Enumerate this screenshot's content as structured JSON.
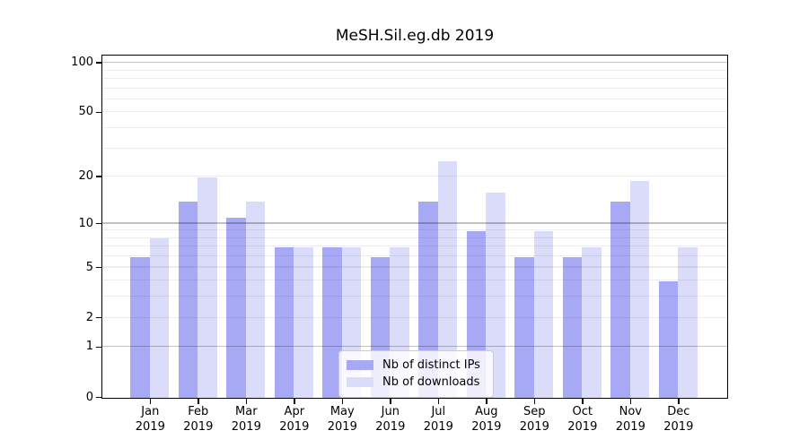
{
  "title": "MeSH.Sil.eg.db 2019",
  "chart_data": {
    "type": "bar",
    "title": "MeSH.Sil.eg.db 2019",
    "categories": [
      "Jan",
      "Feb",
      "Mar",
      "Apr",
      "May",
      "Jun",
      "Jul",
      "Aug",
      "Sep",
      "Oct",
      "Nov",
      "Dec"
    ],
    "x_tick_second_line": "2019",
    "series": [
      {
        "name": "Nb of distinct IPs",
        "color": "#a8a9f4",
        "values": [
          6,
          14,
          11,
          7,
          7,
          6,
          14,
          9,
          6,
          6,
          14,
          4
        ]
      },
      {
        "name": "Nb of downloads",
        "color": "#dbdbfa",
        "values": [
          8,
          20,
          14,
          7,
          7,
          7,
          25,
          16,
          9,
          7,
          19,
          7
        ]
      }
    ],
    "yscale": "log1p",
    "ylim": [
      0,
      110
    ],
    "y_tick_values": [
      100,
      50,
      20,
      10,
      5,
      2,
      1,
      0
    ],
    "y_tick_labels": [
      "100",
      "50",
      "20",
      "10",
      "5",
      "2",
      "1",
      "0"
    ],
    "y_major_gridlines": [
      100,
      10,
      1
    ],
    "y_minor_gridlines": [
      90,
      80,
      70,
      60,
      50,
      40,
      30,
      20,
      9,
      8,
      7,
      6,
      5,
      4,
      3,
      2
    ],
    "grid": true,
    "legend": {
      "position": "lower center",
      "entries": [
        "Nb of distinct IPs",
        "Nb of downloads"
      ]
    }
  }
}
